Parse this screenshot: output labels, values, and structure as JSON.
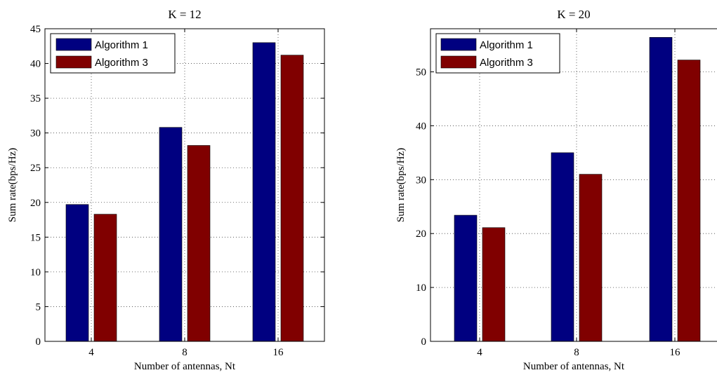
{
  "chart_data": [
    {
      "type": "bar",
      "title": "K = 12",
      "xlabel": "Number of antennas, Nt",
      "ylabel": "Sum rate(bps/Hz)",
      "categories": [
        "4",
        "8",
        "16"
      ],
      "ylim": [
        0,
        45
      ],
      "yticks": [
        0,
        5,
        10,
        15,
        20,
        25,
        30,
        35,
        40,
        45
      ],
      "grid": true,
      "legend_position": "top-left",
      "series": [
        {
          "name": "Algorithm 1",
          "color": "#000080",
          "values": [
            19.7,
            30.8,
            43.0
          ]
        },
        {
          "name": "Algorithm 3",
          "color": "#800000",
          "values": [
            18.3,
            28.2,
            41.2
          ]
        }
      ]
    },
    {
      "type": "bar",
      "title": "K = 20",
      "xlabel": "Number of antennas, Nt",
      "ylabel": "Sum rate(bps/Hz)",
      "categories": [
        "4",
        "8",
        "16"
      ],
      "ylim": [
        0,
        58
      ],
      "yticks": [
        0,
        10,
        20,
        30,
        40,
        50
      ],
      "grid": true,
      "legend_position": "top-left",
      "series": [
        {
          "name": "Algorithm 1",
          "color": "#000080",
          "values": [
            23.4,
            35.0,
            56.4
          ]
        },
        {
          "name": "Algorithm 3",
          "color": "#800000",
          "values": [
            21.1,
            31.0,
            52.2
          ]
        }
      ]
    }
  ]
}
